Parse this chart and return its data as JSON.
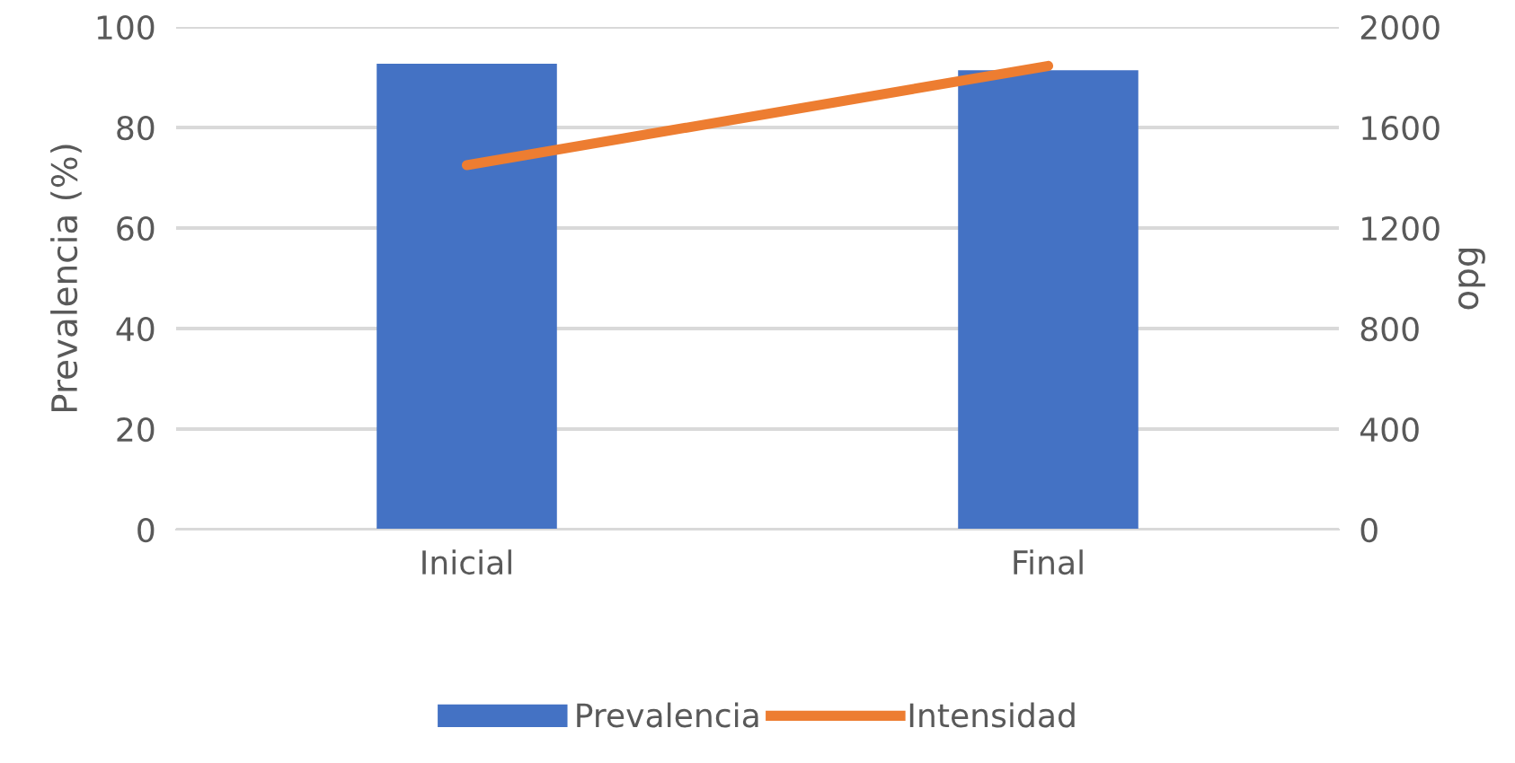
{
  "chart_data": {
    "type": "bar",
    "ylabel": "Prevalencia (%)",
    "y2label": "opg",
    "categories": [
      "Inicial",
      "Final"
    ],
    "series": [
      {
        "name": "Prevalencia",
        "color": "#4472c4",
        "values": [
          92.7,
          91.4
        ]
      },
      {
        "name": "Intensidad",
        "type": "line",
        "axis": "y2",
        "color": "#ed7d31",
        "values": [
          1450,
          1845
        ]
      }
    ],
    "ylim": [
      0,
      100
    ],
    "yticks": [
      0,
      20,
      40,
      60,
      80,
      100
    ],
    "y2lim": [
      0,
      2000
    ],
    "y2ticks": [
      0,
      400,
      800,
      1200,
      1600,
      2000
    ],
    "grid": "y",
    "legend": "bottom",
    "marker": "none"
  }
}
